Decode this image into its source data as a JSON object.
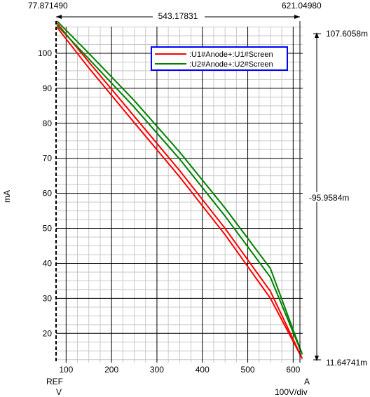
{
  "chart_data": {
    "type": "line",
    "title": "",
    "xlabel": "",
    "ylabel": "mA",
    "xlim": [
      77.87149,
      621.0498
    ],
    "ylim": [
      11.64741,
      107.6058
    ],
    "x_ticks": [
      100,
      200,
      300,
      400,
      500,
      600
    ],
    "y_ticks": [
      20,
      30,
      40,
      50,
      60,
      70,
      80,
      90,
      100
    ],
    "grid": true,
    "legend_position": "top-right",
    "cursors": {
      "left_x": "77.871490",
      "right_x": "621.04980",
      "delta_x": "543.17831",
      "top_y": "107.6058m",
      "mid_y": "-95.9584m",
      "bottom_y": "11.64741m"
    },
    "corner_labels": {
      "ref": "REF",
      "v": "V",
      "a": "A",
      "div": "100V/div"
    },
    "series": [
      {
        "name": ":U1#Anode+:U1#Screen",
        "color": "#ff0000",
        "x": [
          80,
          150,
          250,
          350,
          450,
          550,
          620
        ],
        "y": [
          108.6,
          97.5,
          82.0,
          66.5,
          50.0,
          32.0,
          12.8
        ],
        "return_y": [
          107.4,
          95.8,
          80.2,
          64.7,
          48.2,
          30.0,
          12.8
        ]
      },
      {
        "name": ":U2#Anode+:U2#Screen",
        "color": "#008000",
        "x": [
          80,
          150,
          250,
          350,
          450,
          550,
          620
        ],
        "y": [
          109.2,
          100.0,
          86.5,
          71.8,
          55.8,
          38.5,
          14.0
        ],
        "return_y": [
          108.0,
          98.4,
          84.6,
          69.8,
          53.5,
          36.0,
          14.0
        ]
      }
    ]
  }
}
